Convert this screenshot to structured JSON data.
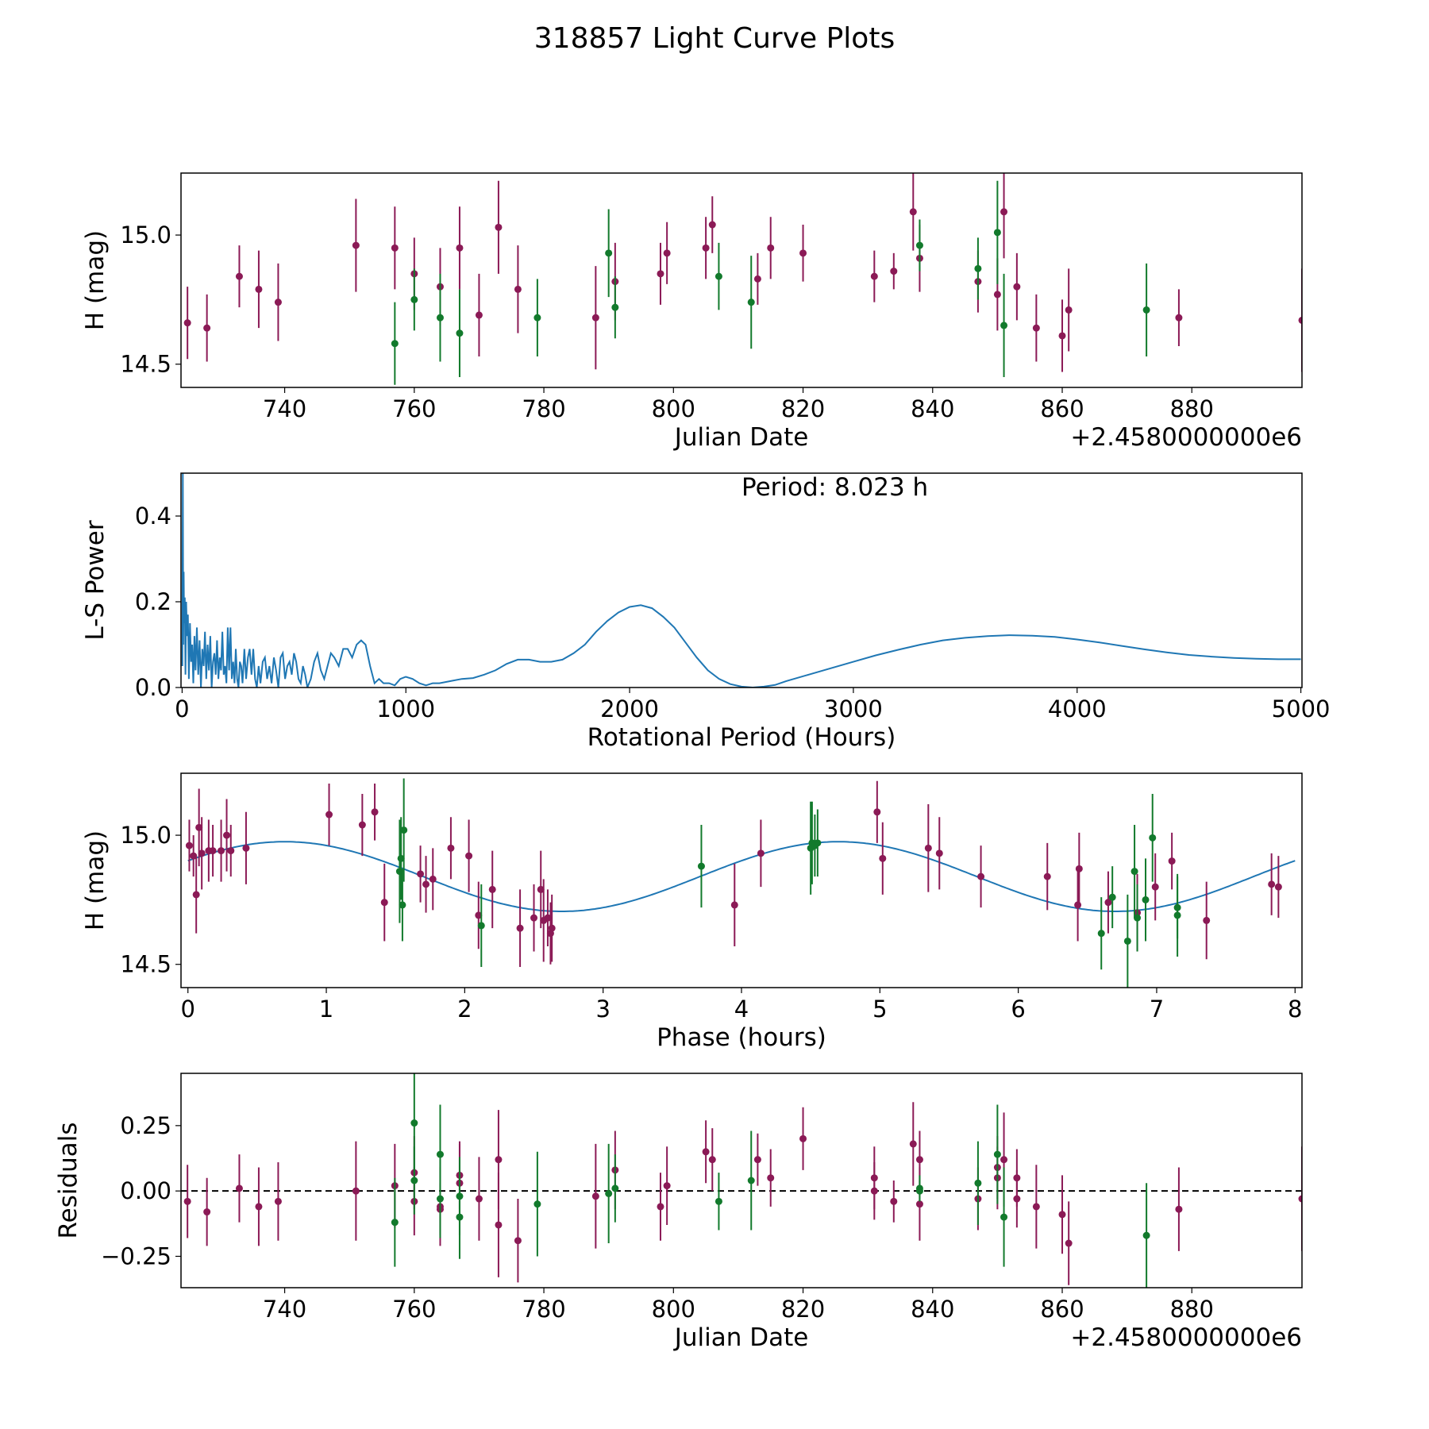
{
  "title": "318857 Light Curve Plots",
  "colors": {
    "filter1": "#8b1a56",
    "filter2": "#127a2c",
    "model": "#1f77b4",
    "zero_line": "#000000"
  },
  "chart_data": [
    {
      "id": "lightcurve",
      "type": "scatter",
      "title": "",
      "xlabel": "Julian Date",
      "ylabel": "H (mag)",
      "x_offset_label": "+2.4580000000e6",
      "xlim": [
        724,
        897
      ],
      "ylim": [
        14.41,
        15.24
      ],
      "xticks": [
        740,
        760,
        780,
        800,
        820,
        840,
        860,
        880
      ],
      "yticks": [
        14.5,
        15.0
      ],
      "ytick_labels": [
        "14.5",
        "15.0"
      ],
      "errorbars": true,
      "series": [
        {
          "name": "filter1",
          "color": "#8b1a56",
          "x": [
            725,
            728,
            733,
            736,
            739,
            751,
            757,
            760,
            764,
            767,
            770,
            773,
            776,
            788,
            791,
            798,
            799,
            805,
            806,
            813,
            815,
            820,
            831,
            834,
            837,
            838,
            847,
            850,
            851,
            853,
            856,
            860,
            861,
            878,
            897
          ],
          "y": [
            14.66,
            14.64,
            14.84,
            14.79,
            14.74,
            14.96,
            14.95,
            14.85,
            14.8,
            14.95,
            14.69,
            15.03,
            14.79,
            14.68,
            14.82,
            14.85,
            14.93,
            14.95,
            15.04,
            14.83,
            14.95,
            14.93,
            14.84,
            14.86,
            15.09,
            14.91,
            14.82,
            14.77,
            15.09,
            14.8,
            14.64,
            14.61,
            14.71,
            14.68,
            14.67
          ],
          "err": [
            0.14,
            0.13,
            0.12,
            0.15,
            0.15,
            0.18,
            0.16,
            0.14,
            0.15,
            0.16,
            0.16,
            0.18,
            0.17,
            0.2,
            0.15,
            0.12,
            0.12,
            0.12,
            0.11,
            0.1,
            0.12,
            0.11,
            0.1,
            0.07,
            0.15,
            0.13,
            0.12,
            0.14,
            0.18,
            0.13,
            0.13,
            0.14,
            0.16,
            0.11,
            0.2
          ]
        },
        {
          "name": "filter2",
          "color": "#127a2c",
          "x": [
            757,
            760,
            764,
            767,
            779,
            790,
            791,
            807,
            812,
            838,
            847,
            850,
            851,
            873
          ],
          "y": [
            14.58,
            14.75,
            14.68,
            14.62,
            14.68,
            14.93,
            14.72,
            14.84,
            14.74,
            14.96,
            14.87,
            15.01,
            14.65,
            14.71
          ],
          "err": [
            0.16,
            0.12,
            0.17,
            0.17,
            0.15,
            0.17,
            0.12,
            0.13,
            0.18,
            0.1,
            0.12,
            0.2,
            0.2,
            0.18
          ]
        }
      ]
    },
    {
      "id": "periodogram",
      "type": "line",
      "title": "",
      "xlabel": "Rotational Period (Hours)",
      "ylabel": "L-S Power",
      "annotation": "Period: 8.023 h",
      "xlim": [
        -5,
        5005
      ],
      "ylim": [
        0,
        0.5
      ],
      "xticks": [
        0,
        1000,
        2000,
        3000,
        4000,
        5000
      ],
      "yticks": [
        0.0,
        0.2,
        0.4
      ],
      "ytick_labels": [
        "0.0",
        "0.2",
        "0.4"
      ],
      "series": [
        {
          "name": "L-S Power",
          "color": "#1f77b4",
          "x": [
            1,
            3,
            5,
            7,
            9,
            12,
            15,
            18,
            22,
            26,
            30,
            35,
            40,
            45,
            50,
            55,
            60,
            66,
            72,
            78,
            84,
            90,
            96,
            102,
            108,
            114,
            120,
            126,
            132,
            138,
            144,
            150,
            156,
            162,
            168,
            174,
            180,
            186,
            192,
            198,
            204,
            210,
            216,
            222,
            228,
            234,
            240,
            246,
            252,
            258,
            264,
            270,
            278,
            286,
            294,
            302,
            310,
            318,
            326,
            334,
            342,
            350,
            360,
            370,
            380,
            390,
            400,
            410,
            420,
            430,
            440,
            450,
            460,
            470,
            480,
            490,
            500,
            510,
            520,
            530,
            540,
            550,
            560,
            575,
            590,
            605,
            620,
            635,
            650,
            665,
            680,
            700,
            720,
            740,
            760,
            780,
            800,
            820,
            840,
            860,
            880,
            900,
            925,
            950,
            975,
            1000,
            1030,
            1060,
            1090,
            1120,
            1150,
            1200,
            1250,
            1300,
            1350,
            1400,
            1450,
            1500,
            1550,
            1600,
            1650,
            1700,
            1750,
            1800,
            1850,
            1900,
            1950,
            2000,
            2050,
            2100,
            2150,
            2200,
            2250,
            2300,
            2350,
            2400,
            2450,
            2500,
            2550,
            2600,
            2650,
            2700,
            2800,
            2900,
            3000,
            3100,
            3200,
            3300,
            3400,
            3500,
            3600,
            3700,
            3800,
            3900,
            4000,
            4100,
            4200,
            4300,
            4400,
            4500,
            4600,
            4700,
            4800,
            4900,
            5000
          ],
          "y": [
            0.05,
            0.5,
            0.1,
            0.27,
            0.15,
            0.21,
            0.03,
            0.2,
            0.12,
            0.17,
            0.02,
            0.15,
            0.06,
            0.1,
            0.01,
            0.12,
            0.04,
            0.14,
            0.03,
            0.11,
            0.0,
            0.09,
            0.05,
            0.13,
            0.02,
            0.1,
            0.04,
            0.12,
            0.0,
            0.06,
            0.08,
            0.03,
            0.11,
            0.02,
            0.07,
            0.04,
            0.13,
            0.03,
            0.05,
            0.01,
            0.14,
            0.04,
            0.14,
            0.02,
            0.06,
            0.01,
            0.09,
            0.02,
            0.0,
            0.06,
            0.05,
            0.01,
            0.09,
            0.02,
            0.07,
            0.09,
            0.03,
            0.09,
            0.02,
            0.0,
            0.05,
            0.01,
            0.06,
            0.07,
            0.02,
            0.05,
            0.01,
            0.07,
            0.04,
            0.0,
            0.07,
            0.08,
            0.02,
            0.05,
            0.06,
            0.03,
            0.08,
            0.06,
            0.02,
            0.01,
            0.05,
            0.03,
            0.0,
            0.02,
            0.06,
            0.08,
            0.04,
            0.02,
            0.05,
            0.08,
            0.07,
            0.05,
            0.09,
            0.09,
            0.07,
            0.1,
            0.11,
            0.1,
            0.05,
            0.01,
            0.02,
            0.01,
            0.01,
            0.005,
            0.02,
            0.025,
            0.02,
            0.01,
            0.005,
            0.01,
            0.01,
            0.015,
            0.02,
            0.022,
            0.03,
            0.04,
            0.055,
            0.065,
            0.065,
            0.06,
            0.06,
            0.065,
            0.08,
            0.1,
            0.13,
            0.155,
            0.175,
            0.188,
            0.192,
            0.185,
            0.165,
            0.14,
            0.105,
            0.07,
            0.04,
            0.02,
            0.008,
            0.002,
            0.0,
            0.002,
            0.006,
            0.015,
            0.03,
            0.045,
            0.06,
            0.075,
            0.088,
            0.1,
            0.11,
            0.116,
            0.12,
            0.122,
            0.121,
            0.118,
            0.112,
            0.105,
            0.097,
            0.089,
            0.082,
            0.076,
            0.072,
            0.069,
            0.067,
            0.066,
            0.066
          ]
        }
      ]
    },
    {
      "id": "phased",
      "type": "scatter",
      "title": "",
      "xlabel": "Phase (hours)",
      "ylabel": "H (mag)",
      "xlim": [
        -0.05,
        8.05
      ],
      "ylim": [
        14.41,
        15.24
      ],
      "xticks": [
        0,
        1,
        2,
        3,
        4,
        5,
        6,
        7,
        8
      ],
      "yticks": [
        14.5,
        15.0
      ],
      "ytick_labels": [
        "14.5",
        "15.0"
      ],
      "errorbars": true,
      "model": {
        "name": "fit",
        "color": "#1f77b4",
        "mean": 14.84,
        "amplitude": 0.135,
        "period": 4.0,
        "phase_of_max": 0.7
      },
      "series": [
        {
          "name": "filter1",
          "color": "#8b1a56",
          "x": [
            0.01,
            0.04,
            0.06,
            0.08,
            0.1,
            0.15,
            0.18,
            0.24,
            0.28,
            0.31,
            0.42,
            1.02,
            1.26,
            1.35,
            1.42,
            1.68,
            1.72,
            1.77,
            1.9,
            2.03,
            2.1,
            2.2,
            2.4,
            2.5,
            2.55,
            2.57,
            2.6,
            2.62,
            2.63,
            3.95,
            4.14,
            4.98,
            5.02,
            5.35,
            5.43,
            5.73,
            6.21,
            6.43,
            6.44,
            6.65,
            6.86,
            6.99,
            7.11,
            7.36,
            7.83,
            7.88
          ],
          "y": [
            14.96,
            14.92,
            14.77,
            15.03,
            14.93,
            14.94,
            14.94,
            14.94,
            15.0,
            14.94,
            14.95,
            15.08,
            15.04,
            15.09,
            14.74,
            14.85,
            14.81,
            14.83,
            14.95,
            14.92,
            14.69,
            14.79,
            14.64,
            14.68,
            14.79,
            14.67,
            14.68,
            14.62,
            14.64,
            14.73,
            14.93,
            15.09,
            14.91,
            14.95,
            14.93,
            14.84,
            14.84,
            14.73,
            14.87,
            14.74,
            14.7,
            14.8,
            14.9,
            14.67,
            14.81,
            14.8
          ],
          "err": [
            0.1,
            0.08,
            0.15,
            0.15,
            0.14,
            0.12,
            0.1,
            0.12,
            0.14,
            0.1,
            0.14,
            0.12,
            0.12,
            0.11,
            0.15,
            0.11,
            0.11,
            0.12,
            0.12,
            0.14,
            0.13,
            0.15,
            0.15,
            0.13,
            0.15,
            0.16,
            0.11,
            0.12,
            0.13,
            0.16,
            0.13,
            0.12,
            0.14,
            0.17,
            0.14,
            0.12,
            0.13,
            0.14,
            0.14,
            0.12,
            0.15,
            0.13,
            0.11,
            0.15,
            0.12,
            0.12
          ]
        },
        {
          "name": "filter2",
          "color": "#127a2c",
          "x": [
            1.53,
            1.54,
            1.55,
            1.56,
            2.12,
            3.71,
            4.5,
            4.51,
            4.53,
            4.55,
            6.6,
            6.68,
            6.79,
            6.84,
            6.86,
            6.92,
            6.97,
            7.15,
            7.15
          ],
          "y": [
            14.86,
            14.91,
            14.73,
            15.02,
            14.65,
            14.88,
            14.95,
            14.97,
            14.96,
            14.97,
            14.62,
            14.76,
            14.59,
            14.86,
            14.68,
            14.75,
            14.99,
            14.72,
            14.69
          ],
          "err": [
            0.2,
            0.16,
            0.14,
            0.2,
            0.16,
            0.16,
            0.18,
            0.16,
            0.12,
            0.13,
            0.14,
            0.12,
            0.18,
            0.18,
            0.13,
            0.16,
            0.17,
            0.12,
            0.16
          ]
        }
      ]
    },
    {
      "id": "residuals",
      "type": "scatter",
      "title": "",
      "xlabel": "Julian Date",
      "ylabel": "Residuals",
      "x_offset_label": "+2.4580000000e6",
      "xlim": [
        724,
        897
      ],
      "ylim": [
        -0.37,
        0.45
      ],
      "xticks": [
        740,
        760,
        780,
        800,
        820,
        840,
        860,
        880
      ],
      "yticks": [
        -0.25,
        0.0,
        0.25
      ],
      "ytick_labels": [
        "−0.25",
        "0.00",
        "0.25"
      ],
      "zero_line": true,
      "errorbars": true,
      "series": [
        {
          "name": "filter1",
          "color": "#8b1a56",
          "x": [
            725,
            728,
            733,
            736,
            739,
            751,
            757,
            760,
            760,
            764,
            764,
            767,
            767,
            770,
            773,
            773,
            776,
            788,
            791,
            798,
            799,
            805,
            806,
            813,
            815,
            820,
            831,
            831,
            834,
            837,
            838,
            838,
            847,
            850,
            850,
            851,
            853,
            853,
            856,
            860,
            861,
            878,
            897
          ],
          "y": [
            -0.04,
            -0.08,
            0.01,
            -0.06,
            -0.04,
            0.0,
            0.02,
            0.07,
            -0.04,
            -0.06,
            -0.07,
            0.03,
            0.06,
            -0.03,
            0.12,
            -0.13,
            -0.19,
            -0.02,
            0.08,
            -0.06,
            0.02,
            0.15,
            0.12,
            0.12,
            0.05,
            0.2,
            0.05,
            0.0,
            -0.04,
            0.18,
            0.12,
            -0.05,
            -0.03,
            0.09,
            0.05,
            0.12,
            -0.03,
            0.05,
            -0.06,
            -0.09,
            -0.2,
            -0.07,
            -0.03
          ],
          "err": [
            0.14,
            0.13,
            0.13,
            0.15,
            0.15,
            0.19,
            0.16,
            0.14,
            0.13,
            0.15,
            0.1,
            0.15,
            0.13,
            0.16,
            0.19,
            0.2,
            0.16,
            0.2,
            0.15,
            0.13,
            0.15,
            0.12,
            0.12,
            0.1,
            0.11,
            0.12,
            0.12,
            0.11,
            0.08,
            0.16,
            0.11,
            0.14,
            0.12,
            0.12,
            0.12,
            0.18,
            0.11,
            0.11,
            0.16,
            0.15,
            0.16,
            0.16,
            0.2
          ]
        },
        {
          "name": "filter2",
          "color": "#127a2c",
          "x": [
            757,
            760,
            760,
            764,
            764,
            767,
            767,
            779,
            790,
            791,
            807,
            812,
            838,
            838,
            847,
            850,
            851,
            873
          ],
          "y": [
            -0.12,
            0.26,
            0.04,
            0.14,
            -0.03,
            -0.02,
            -0.1,
            -0.05,
            -0.01,
            0.01,
            -0.04,
            0.04,
            0.01,
            0.0,
            0.03,
            0.14,
            -0.1,
            -0.17
          ],
          "err": [
            0.17,
            0.2,
            0.13,
            0.19,
            0.15,
            0.15,
            0.16,
            0.2,
            0.19,
            0.13,
            0.11,
            0.19,
            0.05,
            0.04,
            0.16,
            0.19,
            0.19,
            0.2
          ]
        }
      ]
    }
  ]
}
